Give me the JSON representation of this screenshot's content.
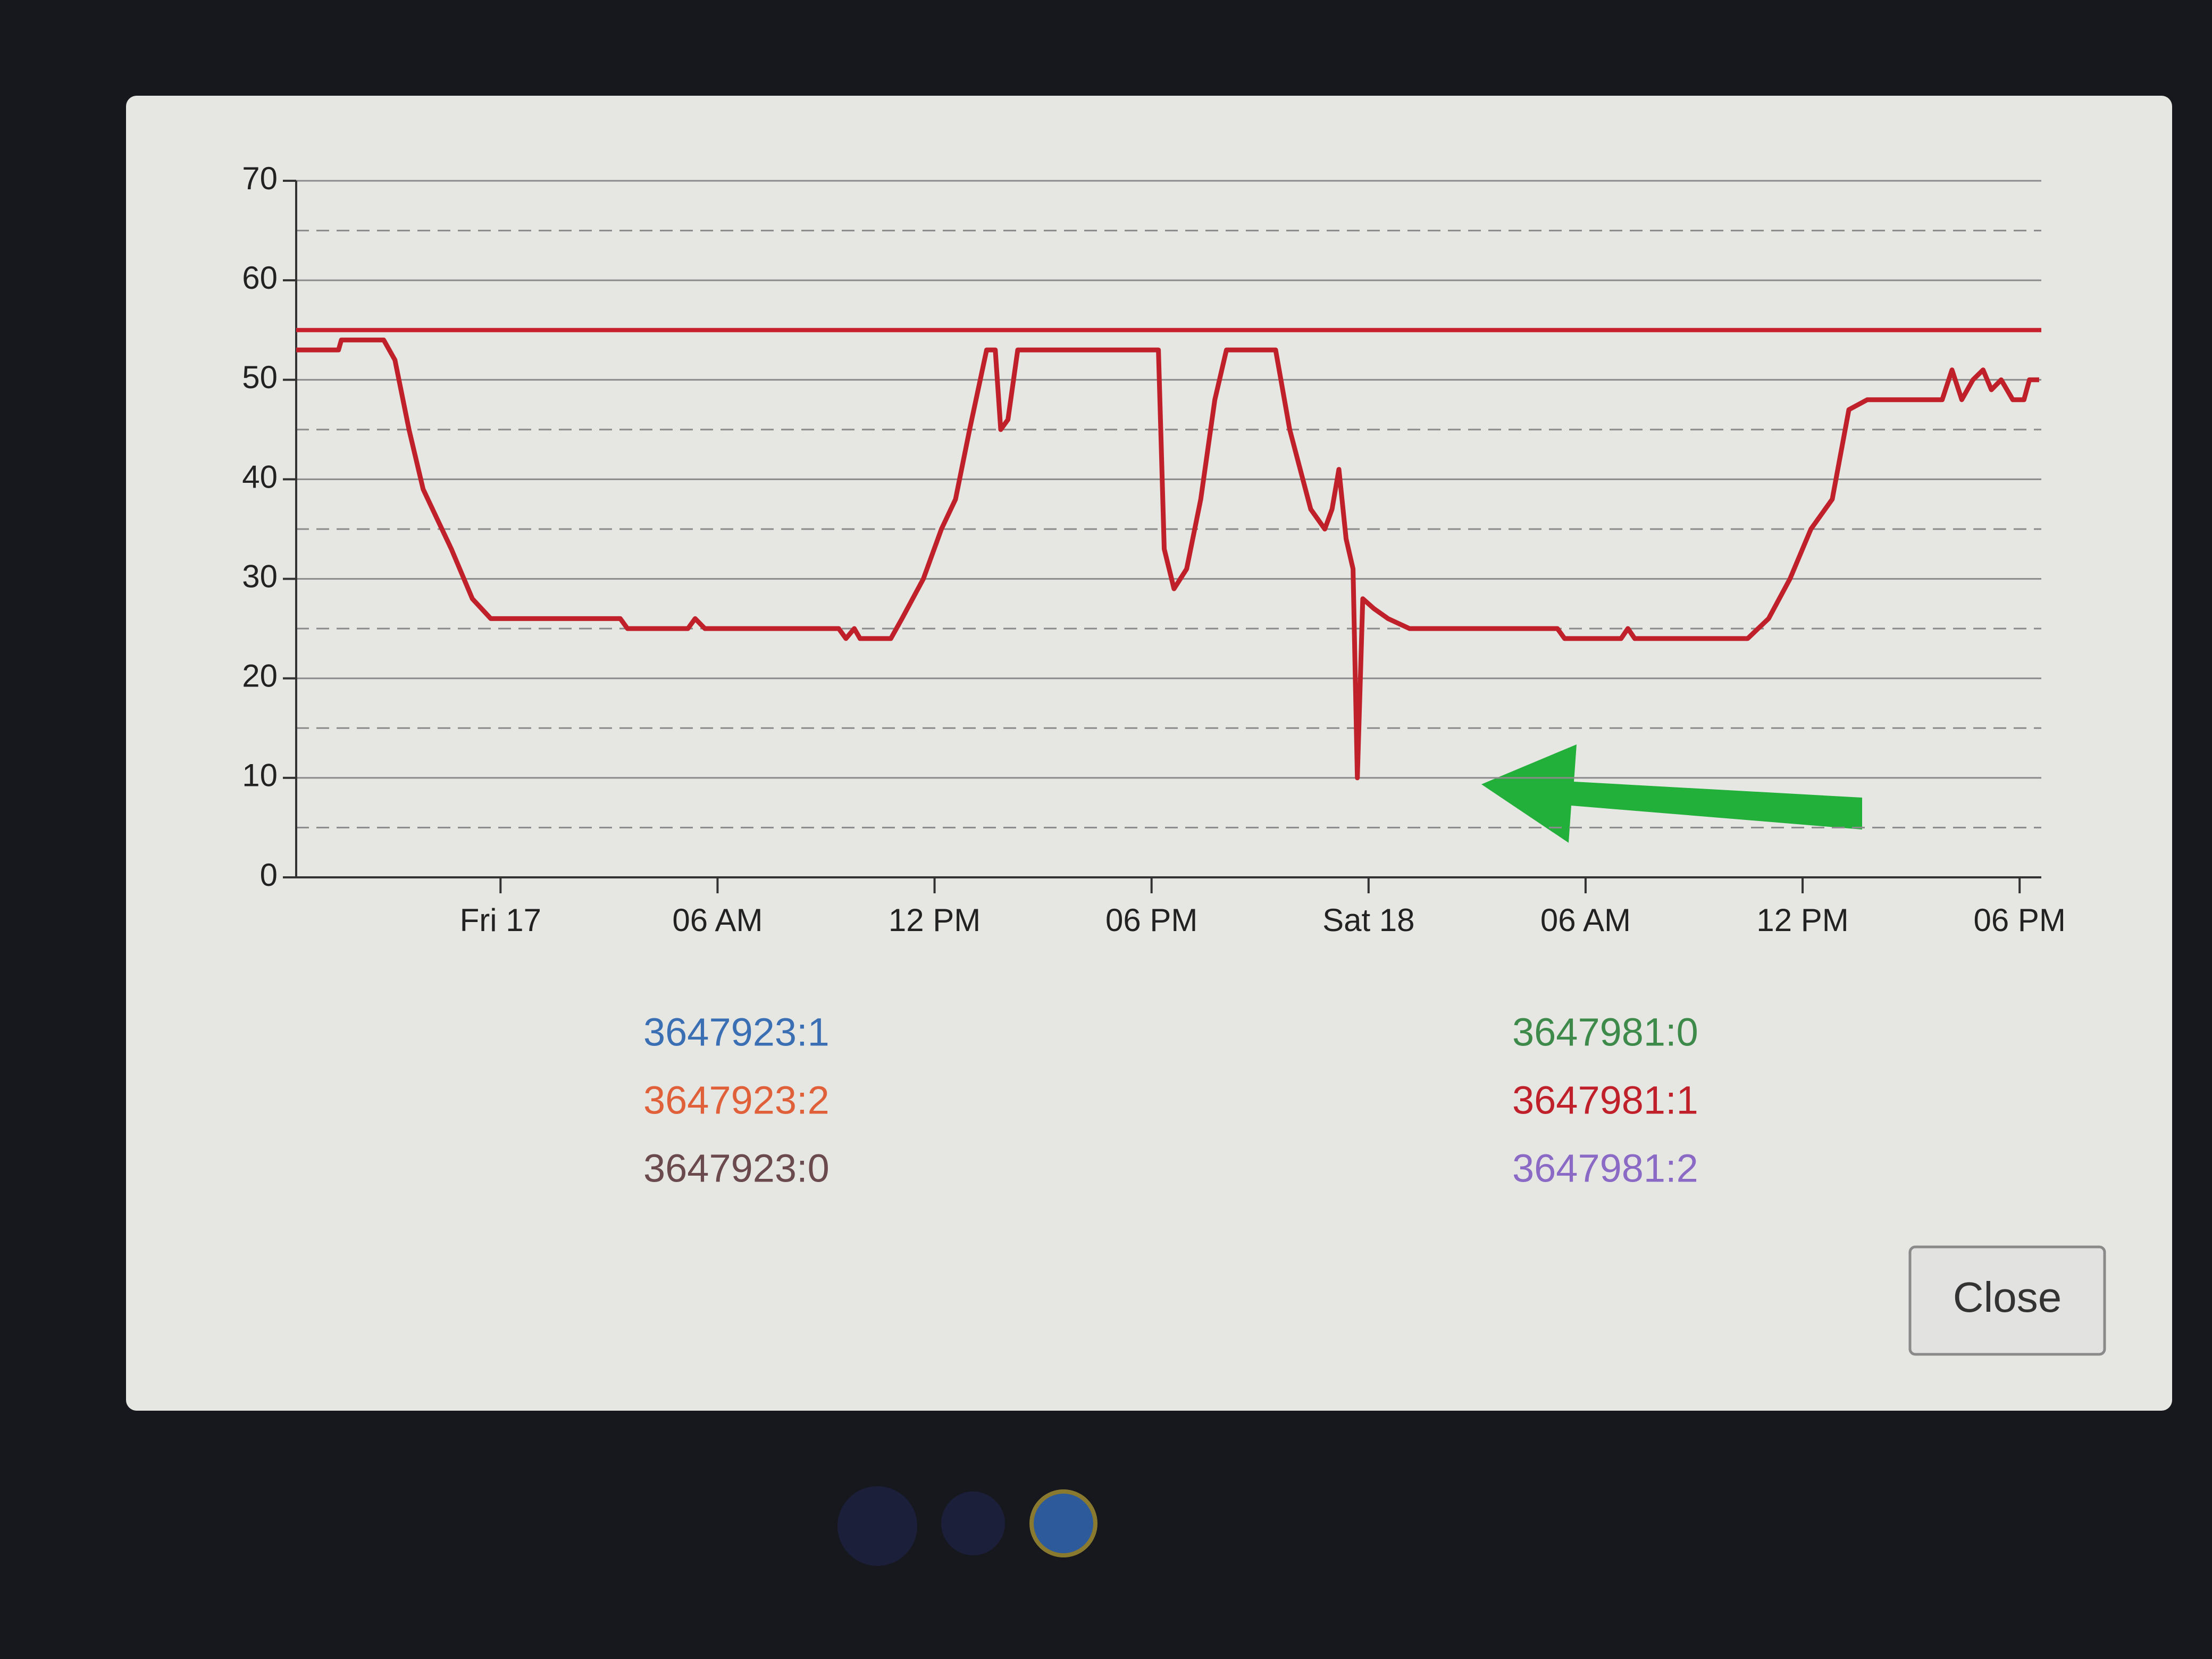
{
  "chart_data": {
    "type": "line",
    "xlim": [
      -5.65,
      42.6
    ],
    "xticks": [
      {
        "value": 0,
        "label": "Fri 17"
      },
      {
        "value": 6,
        "label": "06 AM"
      },
      {
        "value": 12,
        "label": "12 PM"
      },
      {
        "value": 18,
        "label": "06 PM"
      },
      {
        "value": 24,
        "label": "Sat 18"
      },
      {
        "value": 30,
        "label": "06 AM"
      },
      {
        "value": 36,
        "label": "12 PM"
      },
      {
        "value": 42,
        "label": "06 PM"
      }
    ],
    "ylim": [
      0,
      70
    ],
    "yticks": [
      0,
      10,
      20,
      30,
      40,
      50,
      60,
      70
    ],
    "yminorticks": [
      5,
      15,
      25,
      35,
      45,
      55,
      65
    ],
    "grid": true,
    "reference_line": 55,
    "reference_color": "#c8202c",
    "series": [
      {
        "name": "3647923:1",
        "color": "#3a6fb4"
      },
      {
        "name": "3647923:2",
        "color": "#e0603a"
      },
      {
        "name": "3647923:0",
        "color": "#6a4a4c"
      },
      {
        "name": "3647981:0",
        "color": "#3e8a4a"
      },
      {
        "name": "3647981:1",
        "color": "#c0202a",
        "x": [
          -5.65,
          -4.48,
          -4.4,
          -3.23,
          -2.92,
          -2.53,
          -2.14,
          -1.75,
          -1.36,
          -0.78,
          -0.27,
          3.31,
          3.51,
          5.18,
          5.38,
          5.65,
          9.35,
          9.55,
          9.78,
          9.94,
          10.79,
          11.1,
          11.69,
          12.19,
          12.58,
          12.97,
          13.44,
          13.68,
          13.83,
          14.03,
          14.3,
          18.19,
          18.35,
          18.62,
          18.97,
          19.36,
          19.75,
          20.07,
          21.43,
          21.82,
          22.4,
          22.79,
          22.99,
          23.18,
          23.38,
          23.57,
          23.69,
          23.84,
          24.15,
          24.54,
          25.13,
          29.22,
          29.42,
          30.98,
          31.17,
          31.36,
          34.48,
          35.06,
          35.65,
          36.23,
          36.82,
          37.28,
          37.79,
          39.86,
          40.13,
          40.4,
          40.71,
          40.99,
          41.22,
          41.49,
          41.81,
          42.12,
          42.27,
          42.54
        ],
        "values": [
          53,
          53,
          54,
          54,
          52,
          45,
          39,
          36,
          33,
          28,
          26,
          26,
          25,
          25,
          26,
          25,
          25,
          24,
          25,
          24,
          24,
          26,
          30,
          35,
          38,
          45,
          53,
          53,
          45,
          46,
          53,
          53,
          33,
          29,
          31,
          38,
          48,
          53,
          53,
          45,
          37,
          35,
          37,
          41,
          34,
          31,
          10,
          28,
          27,
          26,
          25,
          25,
          24,
          24,
          25,
          24,
          24,
          26,
          30,
          35,
          38,
          47,
          48,
          48,
          51,
          48,
          50,
          51,
          49,
          50,
          48,
          48,
          50,
          50
        ]
      },
      {
        "name": "3647981:2",
        "color": "#8a6ac4"
      }
    ]
  },
  "button": {
    "label": "Close"
  }
}
